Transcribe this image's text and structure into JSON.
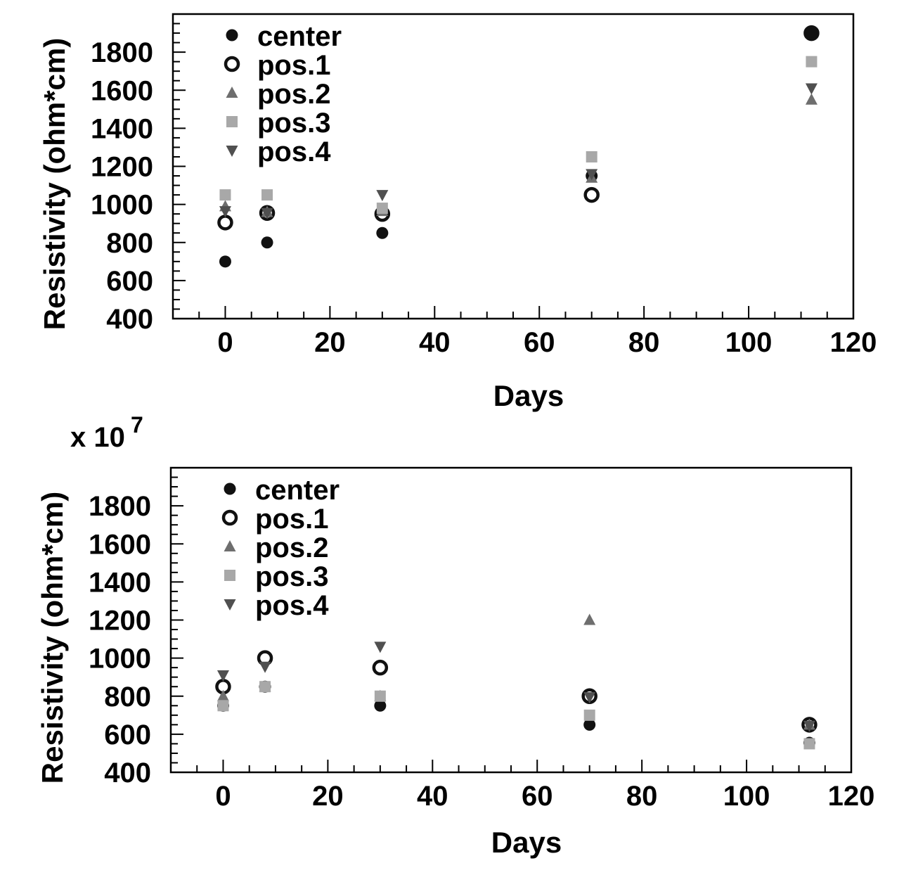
{
  "chart_data": [
    {
      "type": "scatter",
      "title": "",
      "xlabel": "Days",
      "ylabel": "Resistivity (ohm*cm)",
      "xlim": [
        -10,
        120
      ],
      "ylim": [
        400,
        2000
      ],
      "x_ticks": [
        0,
        20,
        40,
        60,
        80,
        100,
        120
      ],
      "y_ticks": [
        400,
        600,
        800,
        1000,
        1200,
        1400,
        1600,
        1800
      ],
      "y_multiplier_label": "",
      "grid": false,
      "legend_position": "top-left",
      "series": [
        {
          "name": "center",
          "marker": "filled-circle",
          "color": "#111111",
          "points": [
            [
              0,
              700
            ],
            [
              8,
              800
            ],
            [
              30,
              850
            ],
            [
              70,
              1150
            ],
            [
              112,
              1900
            ]
          ]
        },
        {
          "name": "pos.1",
          "marker": "open-circle",
          "color": "#111111",
          "points": [
            [
              0,
              905
            ],
            [
              8,
              955
            ],
            [
              30,
              950
            ],
            [
              70,
              1050
            ],
            [
              112,
              1900
            ]
          ]
        },
        {
          "name": "pos.2",
          "marker": "triangle-up",
          "color": "#6e6e6e",
          "points": [
            [
              0,
              990
            ],
            [
              8,
              960
            ],
            [
              30,
              965
            ],
            [
              70,
              1140
            ],
            [
              112,
              1550
            ]
          ]
        },
        {
          "name": "pos.3",
          "marker": "square",
          "color": "#a8a8a8",
          "points": [
            [
              0,
              1050
            ],
            [
              8,
              1050
            ],
            [
              30,
              980
            ],
            [
              70,
              1250
            ],
            [
              112,
              1750
            ]
          ]
        },
        {
          "name": "pos.4",
          "marker": "triangle-down",
          "color": "#505050",
          "points": [
            [
              0,
              965
            ],
            [
              8,
              955
            ],
            [
              30,
              1050
            ],
            [
              70,
              1160
            ],
            [
              112,
              1610
            ]
          ]
        }
      ]
    },
    {
      "type": "scatter",
      "title": "",
      "xlabel": "Days",
      "ylabel": "Resistivity (ohm*cm)",
      "xlim": [
        -10,
        120
      ],
      "ylim": [
        400,
        2000
      ],
      "x_ticks": [
        0,
        20,
        40,
        60,
        80,
        100,
        120
      ],
      "y_ticks": [
        400,
        600,
        800,
        1000,
        1200,
        1400,
        1600,
        1800
      ],
      "y_multiplier_label": "x 10",
      "y_multiplier_exponent": "7",
      "grid": false,
      "legend_position": "top-left",
      "series": [
        {
          "name": "center",
          "marker": "filled-circle",
          "color": "#111111",
          "points": [
            [
              0,
              750
            ],
            [
              8,
              850
            ],
            [
              30,
              750
            ],
            [
              70,
              650
            ],
            [
              112,
              555
            ]
          ]
        },
        {
          "name": "pos.1",
          "marker": "open-circle",
          "color": "#111111",
          "points": [
            [
              0,
              850
            ],
            [
              8,
              1000
            ],
            [
              30,
              950
            ],
            [
              70,
              800
            ],
            [
              112,
              650
            ]
          ]
        },
        {
          "name": "pos.2",
          "marker": "triangle-up",
          "color": "#6e6e6e",
          "points": [
            [
              0,
              800
            ],
            [
              8,
              850
            ],
            [
              30,
              800
            ],
            [
              70,
              1200
            ],
            [
              112,
              650
            ]
          ]
        },
        {
          "name": "pos.3",
          "marker": "square",
          "color": "#a8a8a8",
          "points": [
            [
              0,
              750
            ],
            [
              8,
              850
            ],
            [
              30,
              800
            ],
            [
              70,
              700
            ],
            [
              112,
              550
            ]
          ]
        },
        {
          "name": "pos.4",
          "marker": "triangle-down",
          "color": "#505050",
          "points": [
            [
              0,
              910
            ],
            [
              8,
              955
            ],
            [
              30,
              1060
            ],
            [
              70,
              795
            ],
            [
              112,
              645
            ]
          ]
        }
      ]
    }
  ]
}
